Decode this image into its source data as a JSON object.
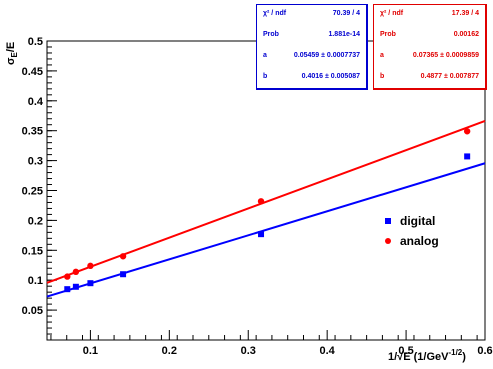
{
  "chart_data": {
    "type": "scatter",
    "xlabel_main": "1/√E (1/GeV",
    "xlabel_exp": "-1/2",
    "xlabel_close": ")",
    "ylabel_main": "σ",
    "ylabel_sub": "E",
    "ylabel_rest": "/E",
    "xlim": [
      0.045,
      0.6
    ],
    "ylim": [
      0,
      0.5
    ],
    "x_ticks": [
      "0.1",
      "0.2",
      "0.3",
      "0.4",
      "0.5",
      "0.6"
    ],
    "y_ticks": [
      "0.05",
      "0.1",
      "0.15",
      "0.2",
      "0.25",
      "0.3",
      "0.35",
      "0.4",
      "0.45",
      "0.5"
    ],
    "legend_placement": "right-center",
    "series": [
      {
        "name": "digital",
        "marker": "square",
        "color": "#0000ff",
        "x": [
          0.0707,
          0.0816,
          0.1,
          0.1414,
          0.3162,
          0.5774
        ],
        "y": [
          0.085,
          0.089,
          0.095,
          0.11,
          0.177,
          0.307
        ],
        "fit": {
          "a": 0.05459,
          "b": 0.4016
        }
      },
      {
        "name": "analog",
        "marker": "circle",
        "color": "#ff0000",
        "x": [
          0.0707,
          0.0816,
          0.1,
          0.1414,
          0.3162,
          0.5774
        ],
        "y": [
          0.106,
          0.114,
          0.124,
          0.14,
          0.232,
          0.349
        ],
        "fit": {
          "a": 0.07365,
          "b": 0.4877
        }
      }
    ],
    "stat_boxes": [
      {
        "color": "#0000d0",
        "rows": [
          {
            "key": "χ² / ndf",
            "value": "70.39 / 4"
          },
          {
            "key": "Prob",
            "value": "1.881e-14"
          },
          {
            "key": "a",
            "value": "0.05459 ± 0.0007737"
          },
          {
            "key": "b",
            "value": "0.4016 ± 0.005087"
          }
        ]
      },
      {
        "color": "#e00000",
        "rows": [
          {
            "key": "χ² / ndf",
            "value": "17.39 / 4"
          },
          {
            "key": "Prob",
            "value": "0.00162"
          },
          {
            "key": "a",
            "value": "0.07365 ± 0.0009859"
          },
          {
            "key": "b",
            "value": "0.4877 ± 0.007877"
          }
        ]
      }
    ]
  }
}
